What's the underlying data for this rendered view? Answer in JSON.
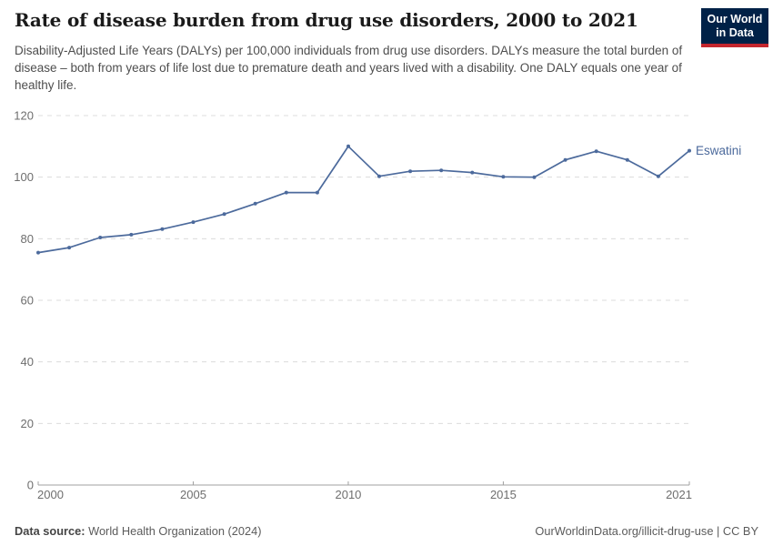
{
  "header": {
    "title": "Rate of disease burden from drug use disorders, 2000 to 2021",
    "subtitle": "Disability-Adjusted Life Years (DALYs) per 100,000 individuals from drug use disorders. DALYs measure the total burden of disease – both from years of life lost due to premature death and years lived with a disability. One DALY equals one year of healthy life.",
    "logo": {
      "line1": "Our World",
      "line2": "in Data",
      "bg_color": "#002147",
      "stripe_color": "#C4262E"
    }
  },
  "chart_data": {
    "type": "line",
    "title": "Rate of disease burden from drug use disorders, 2000 to 2021",
    "xlabel": "",
    "ylabel": "DALYs per 100,000 individuals",
    "x": [
      2000,
      2001,
      2002,
      2003,
      2004,
      2005,
      2006,
      2007,
      2008,
      2009,
      2010,
      2011,
      2012,
      2013,
      2014,
      2015,
      2016,
      2017,
      2018,
      2019,
      2020,
      2021
    ],
    "series": [
      {
        "name": "Eswatini",
        "color": "#4C6A9C",
        "values": [
          75.5,
          77.1,
          80.4,
          81.3,
          83.1,
          85.4,
          88.0,
          91.4,
          95.0,
          95.0,
          110.0,
          100.3,
          101.9,
          102.2,
          101.5,
          100.1,
          100.0,
          105.6,
          108.4,
          105.6,
          100.3,
          108.6
        ]
      }
    ],
    "ylim": [
      0,
      120
    ],
    "yticks": [
      0,
      20,
      40,
      60,
      80,
      100,
      120
    ],
    "xticks": [
      2000,
      2005,
      2010,
      2015,
      2021
    ],
    "grid": true,
    "legend_position": "end-of-line",
    "colors": {
      "grid": "#dcdcdc",
      "axis": "#a0a0a0",
      "tick_text": "#6e6e6e"
    }
  },
  "footer": {
    "source_label": "Data source:",
    "source_value": "World Health Organization (2024)",
    "credit": "OurWorldinData.org/illicit-drug-use | CC BY"
  }
}
